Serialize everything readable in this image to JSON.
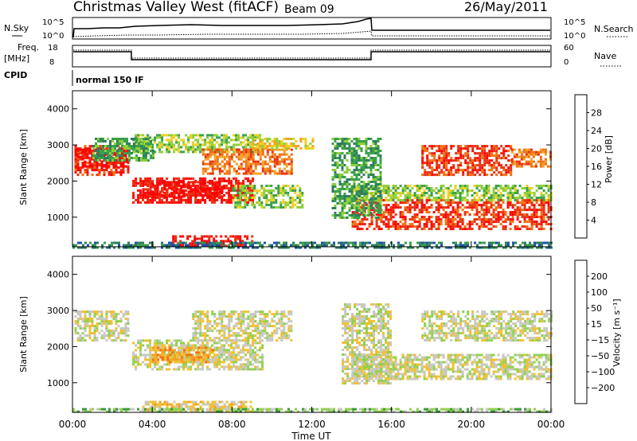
{
  "header": {
    "station": "Christmas Valley West (fitACF)",
    "beam": "Beam 09",
    "date": "26/May/2011"
  },
  "top_panels": {
    "nsky_label": "N.Sky",
    "nsearch_label": "N.Search",
    "freq_label_line1": "Freq.",
    "freq_label_line2": "[MHz]",
    "nave_label": "Nave",
    "cpid_label": "CPID",
    "cpid_text": "normal 150 IF",
    "noise_ticks": [
      "10^5",
      "10^0"
    ],
    "freq_ticks_left": [
      "18",
      "8"
    ],
    "nave_ticks_right": [
      "60",
      "0"
    ]
  },
  "chart_data": [
    {
      "type": "heatmap",
      "name": "power-panel",
      "ylabel": "Slant Range [km]",
      "xlabel": "",
      "x_ticks": [
        "00:00",
        "04:00",
        "08:00",
        "12:00",
        "16:00",
        "20:00",
        "00:00"
      ],
      "xlim_hours": [
        0,
        24
      ],
      "y_ticks": [
        1000,
        2000,
        3000,
        4000
      ],
      "ylim": [
        180,
        4500
      ],
      "colorbar": {
        "label": "Power [dB]",
        "ticks": [
          4,
          8,
          12,
          16,
          20,
          24,
          28
        ],
        "colors": [
          "#1030e0",
          "#1e4fb0",
          "#2f7d60",
          "#3aa04a",
          "#8ccf3a",
          "#f0d020",
          "#f5a020",
          "#f07010",
          "#e83010",
          "#ff0000"
        ]
      },
      "regions": [
        {
          "t0": 0.1,
          "t1": 2.8,
          "r0": 2200,
          "r1": 3000,
          "level": 8
        },
        {
          "t0": 0.1,
          "t1": 2.8,
          "r0": 2400,
          "r1": 2900,
          "level": 9
        },
        {
          "t0": 3.0,
          "t1": 9.0,
          "r0": 1400,
          "r1": 2100,
          "level": 9
        },
        {
          "t0": 3.5,
          "t1": 7.5,
          "r0": 1600,
          "r1": 2000,
          "level": 9
        },
        {
          "t0": 3.0,
          "t1": 9.5,
          "r0": 2800,
          "r1": 3300,
          "level": 4
        },
        {
          "t0": 6.5,
          "t1": 11.0,
          "r0": 2200,
          "r1": 2900,
          "level": 7
        },
        {
          "t0": 1.0,
          "t1": 4.0,
          "r0": 2600,
          "r1": 3200,
          "level": 3
        },
        {
          "t0": 14.0,
          "t1": 24.0,
          "r0": 700,
          "r1": 1500,
          "level": 8
        },
        {
          "t0": 14.0,
          "t1": 24.0,
          "r0": 1500,
          "r1": 1900,
          "level": 4
        },
        {
          "t0": 13.0,
          "t1": 15.5,
          "r0": 1000,
          "r1": 3200,
          "level": 3
        },
        {
          "t0": 17.5,
          "t1": 22.0,
          "r0": 2200,
          "r1": 3000,
          "level": 8
        },
        {
          "t0": 22.0,
          "t1": 24.0,
          "r0": 2400,
          "r1": 2900,
          "level": 7
        },
        {
          "t0": 8.0,
          "t1": 11.5,
          "r0": 1300,
          "r1": 1900,
          "level": 4
        },
        {
          "t0": 5.0,
          "t1": 9.0,
          "r0": 200,
          "r1": 500,
          "level": 9
        },
        {
          "t0": 0.0,
          "t1": 24.0,
          "r0": 180,
          "r1": 320,
          "level": 2
        },
        {
          "t0": 9.0,
          "t1": 12.0,
          "r0": 2900,
          "r1": 3200,
          "level": 5
        }
      ]
    },
    {
      "type": "heatmap",
      "name": "velocity-panel",
      "ylabel": "Slant Range [km]",
      "xlabel": "Time UT",
      "x_ticks": [
        "00:00",
        "04:00",
        "08:00",
        "12:00",
        "16:00",
        "20:00",
        "00:00"
      ],
      "xlim_hours": [
        0,
        24
      ],
      "y_ticks": [
        1000,
        2000,
        3000,
        4000
      ],
      "ylim": [
        180,
        4500
      ],
      "colorbar": {
        "label": "Velocity [m s⁻¹]",
        "ticks": [
          "200",
          "100",
          "50",
          "15",
          "−15",
          "−50",
          "−100",
          "−200"
        ],
        "colors": [
          "#1020c0",
          "#2060a0",
          "#3a9a3a",
          "#90d050",
          "#c8c8c0",
          "#f0c030",
          "#f5a020",
          "#f07010",
          "#e83010",
          "#ff0000"
        ]
      },
      "regions": [
        {
          "t0": 0.1,
          "t1": 2.8,
          "r0": 2200,
          "r1": 3000,
          "level": 4
        },
        {
          "t0": 3.0,
          "t1": 9.5,
          "r0": 1400,
          "r1": 2200,
          "level": 4
        },
        {
          "t0": 6.0,
          "t1": 11.0,
          "r0": 2200,
          "r1": 3000,
          "level": 4
        },
        {
          "t0": 14.0,
          "t1": 24.0,
          "r0": 1100,
          "r1": 1800,
          "level": 4
        },
        {
          "t0": 17.5,
          "t1": 24.0,
          "r0": 2200,
          "r1": 3000,
          "level": 4
        },
        {
          "t0": 13.5,
          "t1": 16.0,
          "r0": 1000,
          "r1": 3200,
          "level": 4
        },
        {
          "t0": 3.5,
          "t1": 9.0,
          "r0": 200,
          "r1": 500,
          "level": 5
        },
        {
          "t0": 4.0,
          "t1": 7.0,
          "r0": 1600,
          "r1": 2000,
          "level": 6
        },
        {
          "t0": 0.0,
          "t1": 24.0,
          "r0": 180,
          "r1": 300,
          "level": 3
        }
      ]
    }
  ]
}
